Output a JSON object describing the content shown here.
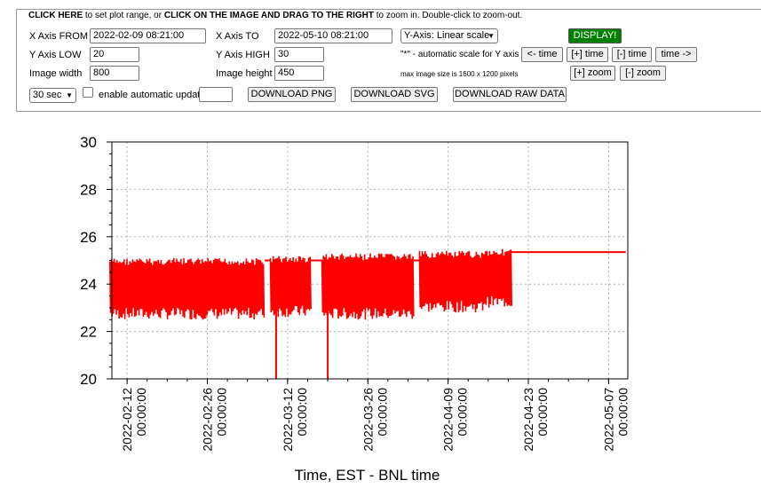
{
  "controls": {
    "legend_parts": [
      {
        "text": "CLICK HERE",
        "bold": true
      },
      {
        "text": " to set plot range, or ",
        "bold": false
      },
      {
        "text": "CLICK ON THE IMAGE AND DRAG TO THE RIGHT",
        "bold": true
      },
      {
        "text": " to zoom in. Double-click to zoom-out.",
        "bold": false
      }
    ],
    "x_from_label": "X Axis FROM",
    "x_from_value": "2022-02-09 08:21:00",
    "x_to_label": "X Axis TO",
    "x_to_value": "2022-05-10 08:21:00",
    "y_scale_select": "Y-Axis: Linear scale",
    "display_button": "DISPLAY!",
    "y_low_label": "Y Axis LOW",
    "y_low_value": "20",
    "y_high_label": "Y Axis HIGH",
    "y_high_value": "30",
    "auto_scale_note": "\"*\" - automatic scale for Y axis",
    "time_back_button": "<- time",
    "time_plus_button": "[+] time",
    "time_minus_button": "[-] time",
    "time_forward_button": "time ->",
    "width_label": "Image width",
    "width_value": "800",
    "height_label": "Image height",
    "height_value": "450",
    "max_size_note": "max image size is 1600 x 1200 pixels",
    "zoom_in_button": "[+] zoom",
    "zoom_out_button": "[-] zoom",
    "refresh_select": "30 sec",
    "auto_update_label": "enable automatic update",
    "auto_update_value": "",
    "download_png": "DOWNLOAD PNG",
    "download_svg": "DOWNLOAD SVG",
    "download_raw": "DOWNLOAD RAW DATA"
  },
  "chart_data": {
    "type": "line",
    "xlabel": "Time, EST - BNL time",
    "ylabel": "",
    "ylim": [
      20,
      30
    ],
    "yticks": [
      20,
      22,
      24,
      26,
      28,
      30
    ],
    "xlim": [
      "2022-02-09 08:21:00",
      "2022-05-10 08:21:00"
    ],
    "xticks": [
      {
        "date": "2022-02-12",
        "time": "00:00:00"
      },
      {
        "date": "2022-02-26",
        "time": "00:00:00"
      },
      {
        "date": "2022-03-12",
        "time": "00:00:00"
      },
      {
        "date": "2022-03-26",
        "time": "00:00:00"
      },
      {
        "date": "2022-04-09",
        "time": "00:00:00"
      },
      {
        "date": "2022-04-23",
        "time": "00:00:00"
      },
      {
        "date": "2022-05-07",
        "time": "00:00:00"
      }
    ],
    "grid": true,
    "line_color": "#ff0000",
    "series": [
      {
        "segments": [
          {
            "from": "2022-02-09",
            "to": "2022-03-08",
            "low": 22.5,
            "high": 25.1
          },
          {
            "from": "2022-03-09",
            "to": "2022-03-16",
            "low": 22.6,
            "high": 25.2
          },
          {
            "from": "2022-03-18",
            "to": "2022-04-03",
            "low": 22.5,
            "high": 25.3
          },
          {
            "from": "2022-04-04",
            "to": "2022-04-15",
            "low": 22.8,
            "high": 25.4
          },
          {
            "from": "2022-04-15",
            "to": "2022-04-20",
            "low": 23.0,
            "high": 25.5
          }
        ],
        "spikes": [
          {
            "date": "2022-03-10",
            "value": 20.0
          },
          {
            "date": "2022-03-19",
            "value": 20.0
          }
        ],
        "flat_after": {
          "from": "2022-04-20",
          "to": "2022-05-10",
          "value": 25.35
        }
      }
    ]
  }
}
